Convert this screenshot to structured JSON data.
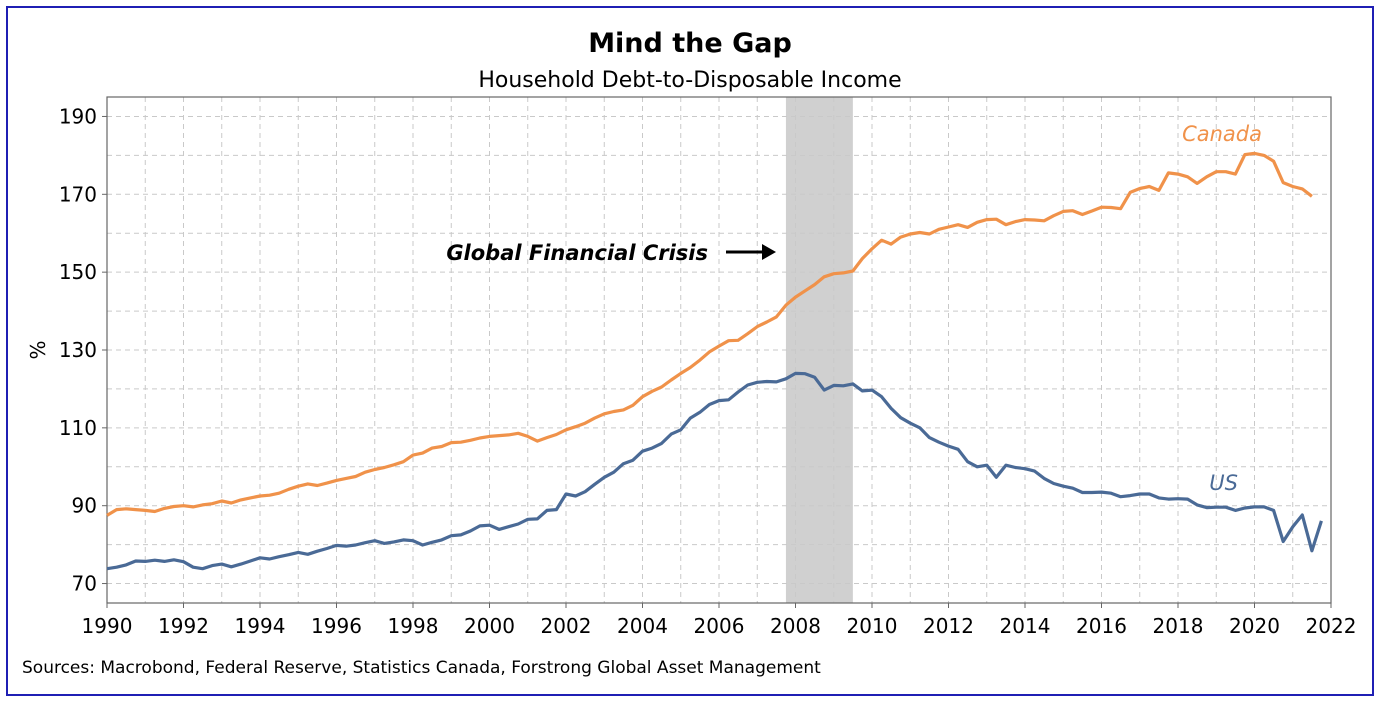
{
  "chart_data": {
    "type": "line",
    "title": "Mind the Gap",
    "subtitle": "Household Debt-to-Disposable Income",
    "ylabel": "%",
    "xlabel": "",
    "xlim": [
      1990,
      2022
    ],
    "ylim": [
      65,
      195
    ],
    "x_ticks": [
      1990,
      1992,
      1994,
      1996,
      1998,
      2000,
      2002,
      2004,
      2006,
      2008,
      2010,
      2012,
      2014,
      2016,
      2018,
      2020,
      2022
    ],
    "y_ticks": [
      70,
      90,
      110,
      130,
      150,
      170,
      190
    ],
    "grid": true,
    "shaded_region": {
      "label": "Global Financial Crisis",
      "start": 2007.75,
      "end": 2009.5,
      "color": "#d0d0d0"
    },
    "annotation": {
      "text": "Global Financial Crisis",
      "arrow": "right"
    },
    "source": "Sources: Macrobond, Federal Reserve, Statistics Canada, Forstrong Global Asset Management",
    "series": [
      {
        "name": "Canada",
        "color": "#f0924a",
        "points": [
          [
            1990.0,
            87.5
          ],
          [
            1990.25,
            89.0
          ],
          [
            1990.5,
            89.2
          ],
          [
            1990.75,
            89.0
          ],
          [
            1991.0,
            88.8
          ],
          [
            1991.25,
            88.5
          ],
          [
            1991.5,
            89.3
          ],
          [
            1991.75,
            89.8
          ],
          [
            1992.0,
            90.0
          ],
          [
            1992.25,
            89.7
          ],
          [
            1992.5,
            90.2
          ],
          [
            1992.75,
            90.5
          ],
          [
            1993.0,
            91.2
          ],
          [
            1993.25,
            90.7
          ],
          [
            1993.5,
            91.5
          ],
          [
            1993.75,
            92.0
          ],
          [
            1994.0,
            92.5
          ],
          [
            1994.25,
            92.7
          ],
          [
            1994.5,
            93.2
          ],
          [
            1994.75,
            94.2
          ],
          [
            1995.0,
            95.0
          ],
          [
            1995.25,
            95.6
          ],
          [
            1995.5,
            95.2
          ],
          [
            1995.75,
            95.8
          ],
          [
            1996.0,
            96.5
          ],
          [
            1996.25,
            97.0
          ],
          [
            1996.5,
            97.5
          ],
          [
            1996.75,
            98.6
          ],
          [
            1997.0,
            99.3
          ],
          [
            1997.25,
            99.8
          ],
          [
            1997.5,
            100.5
          ],
          [
            1997.75,
            101.3
          ],
          [
            1998.0,
            103.0
          ],
          [
            1998.25,
            103.5
          ],
          [
            1998.5,
            104.8
          ],
          [
            1998.75,
            105.2
          ],
          [
            1999.0,
            106.2
          ],
          [
            1999.25,
            106.3
          ],
          [
            1999.5,
            106.8
          ],
          [
            1999.75,
            107.4
          ],
          [
            2000.0,
            107.8
          ],
          [
            2000.25,
            108.0
          ],
          [
            2000.5,
            108.2
          ],
          [
            2000.75,
            108.6
          ],
          [
            2001.0,
            107.8
          ],
          [
            2001.25,
            106.6
          ],
          [
            2001.5,
            107.5
          ],
          [
            2001.75,
            108.3
          ],
          [
            2002.0,
            109.5
          ],
          [
            2002.25,
            110.3
          ],
          [
            2002.5,
            111.2
          ],
          [
            2002.75,
            112.5
          ],
          [
            2003.0,
            113.6
          ],
          [
            2003.25,
            114.2
          ],
          [
            2003.5,
            114.6
          ],
          [
            2003.75,
            115.8
          ],
          [
            2004.0,
            118.0
          ],
          [
            2004.25,
            119.4
          ],
          [
            2004.5,
            120.5
          ],
          [
            2004.75,
            122.3
          ],
          [
            2005.0,
            124.0
          ],
          [
            2005.25,
            125.5
          ],
          [
            2005.5,
            127.4
          ],
          [
            2005.75,
            129.5
          ],
          [
            2006.0,
            131.0
          ],
          [
            2006.25,
            132.4
          ],
          [
            2006.5,
            132.5
          ],
          [
            2006.75,
            134.2
          ],
          [
            2007.0,
            136.0
          ],
          [
            2007.25,
            137.2
          ],
          [
            2007.5,
            138.5
          ],
          [
            2007.75,
            141.5
          ],
          [
            2008.0,
            143.6
          ],
          [
            2008.25,
            145.2
          ],
          [
            2008.5,
            146.8
          ],
          [
            2008.75,
            148.8
          ],
          [
            2009.0,
            149.6
          ],
          [
            2009.25,
            149.8
          ],
          [
            2009.5,
            150.3
          ],
          [
            2009.75,
            153.5
          ],
          [
            2010.0,
            156.0
          ],
          [
            2010.25,
            158.2
          ],
          [
            2010.5,
            157.2
          ],
          [
            2010.75,
            159.0
          ],
          [
            2011.0,
            159.8
          ],
          [
            2011.25,
            160.2
          ],
          [
            2011.5,
            159.8
          ],
          [
            2011.75,
            161.0
          ],
          [
            2012.0,
            161.6
          ],
          [
            2012.25,
            162.2
          ],
          [
            2012.5,
            161.5
          ],
          [
            2012.75,
            162.8
          ],
          [
            2013.0,
            163.5
          ],
          [
            2013.25,
            163.6
          ],
          [
            2013.5,
            162.2
          ],
          [
            2013.75,
            163.0
          ],
          [
            2014.0,
            163.5
          ],
          [
            2014.25,
            163.4
          ],
          [
            2014.5,
            163.2
          ],
          [
            2014.75,
            164.5
          ],
          [
            2015.0,
            165.6
          ],
          [
            2015.25,
            165.8
          ],
          [
            2015.5,
            164.8
          ],
          [
            2015.75,
            165.7
          ],
          [
            2016.0,
            166.7
          ],
          [
            2016.25,
            166.6
          ],
          [
            2016.5,
            166.3
          ],
          [
            2016.75,
            170.5
          ],
          [
            2017.0,
            171.5
          ],
          [
            2017.25,
            172.0
          ],
          [
            2017.5,
            171.0
          ],
          [
            2017.75,
            175.5
          ],
          [
            2018.0,
            175.2
          ],
          [
            2018.25,
            174.5
          ],
          [
            2018.5,
            172.8
          ],
          [
            2018.75,
            174.5
          ],
          [
            2019.0,
            175.8
          ],
          [
            2019.25,
            175.8
          ],
          [
            2019.5,
            175.2
          ],
          [
            2019.75,
            180.2
          ],
          [
            2020.0,
            180.5
          ],
          [
            2020.25,
            180.0
          ],
          [
            2020.5,
            178.5
          ],
          [
            2020.75,
            173.0
          ],
          [
            2021.0,
            172.0
          ],
          [
            2021.25,
            171.4
          ],
          [
            2021.5,
            169.5
          ]
        ]
      },
      {
        "name": "US",
        "color": "#4a6a96",
        "points": [
          [
            1990.0,
            73.8
          ],
          [
            1990.25,
            74.2
          ],
          [
            1990.5,
            74.8
          ],
          [
            1990.75,
            75.8
          ],
          [
            1991.0,
            75.7
          ],
          [
            1991.25,
            76.0
          ],
          [
            1991.5,
            75.7
          ],
          [
            1991.75,
            76.1
          ],
          [
            1992.0,
            75.6
          ],
          [
            1992.25,
            74.2
          ],
          [
            1992.5,
            73.8
          ],
          [
            1992.75,
            74.6
          ],
          [
            1993.0,
            75.0
          ],
          [
            1993.25,
            74.3
          ],
          [
            1993.5,
            75.0
          ],
          [
            1993.75,
            75.8
          ],
          [
            1994.0,
            76.6
          ],
          [
            1994.25,
            76.3
          ],
          [
            1994.5,
            76.9
          ],
          [
            1994.75,
            77.4
          ],
          [
            1995.0,
            78.0
          ],
          [
            1995.25,
            77.5
          ],
          [
            1995.5,
            78.3
          ],
          [
            1995.75,
            79.0
          ],
          [
            1996.0,
            79.8
          ],
          [
            1996.25,
            79.6
          ],
          [
            1996.5,
            79.9
          ],
          [
            1996.75,
            80.5
          ],
          [
            1997.0,
            81.0
          ],
          [
            1997.25,
            80.3
          ],
          [
            1997.5,
            80.7
          ],
          [
            1997.75,
            81.2
          ],
          [
            1998.0,
            81.0
          ],
          [
            1998.25,
            79.9
          ],
          [
            1998.5,
            80.6
          ],
          [
            1998.75,
            81.2
          ],
          [
            1999.0,
            82.3
          ],
          [
            1999.25,
            82.5
          ],
          [
            1999.5,
            83.5
          ],
          [
            1999.75,
            84.8
          ],
          [
            2000.0,
            85.0
          ],
          [
            2000.25,
            83.9
          ],
          [
            2000.5,
            84.6
          ],
          [
            2000.75,
            85.3
          ],
          [
            2001.0,
            86.5
          ],
          [
            2001.25,
            86.6
          ],
          [
            2001.5,
            88.8
          ],
          [
            2001.75,
            89.0
          ],
          [
            2002.0,
            93.0
          ],
          [
            2002.25,
            92.5
          ],
          [
            2002.5,
            93.6
          ],
          [
            2002.75,
            95.5
          ],
          [
            2003.0,
            97.3
          ],
          [
            2003.25,
            98.6
          ],
          [
            2003.5,
            100.8
          ],
          [
            2003.75,
            101.7
          ],
          [
            2004.0,
            104.0
          ],
          [
            2004.25,
            104.8
          ],
          [
            2004.5,
            106.0
          ],
          [
            2004.75,
            108.4
          ],
          [
            2005.0,
            109.5
          ],
          [
            2005.25,
            112.5
          ],
          [
            2005.5,
            114.0
          ],
          [
            2005.75,
            116.0
          ],
          [
            2006.0,
            117.0
          ],
          [
            2006.25,
            117.2
          ],
          [
            2006.5,
            119.2
          ],
          [
            2006.75,
            121.0
          ],
          [
            2007.0,
            121.7
          ],
          [
            2007.25,
            121.9
          ],
          [
            2007.5,
            121.8
          ],
          [
            2007.75,
            122.6
          ],
          [
            2008.0,
            124.0
          ],
          [
            2008.25,
            123.9
          ],
          [
            2008.5,
            123.0
          ],
          [
            2008.75,
            119.7
          ],
          [
            2009.0,
            120.9
          ],
          [
            2009.25,
            120.8
          ],
          [
            2009.5,
            121.3
          ],
          [
            2009.75,
            119.5
          ],
          [
            2010.0,
            119.7
          ],
          [
            2010.25,
            118.0
          ],
          [
            2010.5,
            115.0
          ],
          [
            2010.75,
            112.6
          ],
          [
            2011.0,
            111.2
          ],
          [
            2011.25,
            110.0
          ],
          [
            2011.5,
            107.5
          ],
          [
            2011.75,
            106.3
          ],
          [
            2012.0,
            105.3
          ],
          [
            2012.25,
            104.5
          ],
          [
            2012.5,
            101.3
          ],
          [
            2012.75,
            100.0
          ],
          [
            2013.0,
            100.4
          ],
          [
            2013.25,
            97.3
          ],
          [
            2013.5,
            100.4
          ],
          [
            2013.75,
            99.8
          ],
          [
            2014.0,
            99.5
          ],
          [
            2014.25,
            98.9
          ],
          [
            2014.5,
            97.0
          ],
          [
            2014.75,
            95.7
          ],
          [
            2015.0,
            95.0
          ],
          [
            2015.25,
            94.5
          ],
          [
            2015.5,
            93.4
          ],
          [
            2015.75,
            93.4
          ],
          [
            2016.0,
            93.5
          ],
          [
            2016.25,
            93.2
          ],
          [
            2016.5,
            92.3
          ],
          [
            2016.75,
            92.6
          ],
          [
            2017.0,
            93.0
          ],
          [
            2017.25,
            93.0
          ],
          [
            2017.5,
            92.0
          ],
          [
            2017.75,
            91.7
          ],
          [
            2018.0,
            91.8
          ],
          [
            2018.25,
            91.7
          ],
          [
            2018.5,
            90.2
          ],
          [
            2018.75,
            89.5
          ],
          [
            2019.0,
            89.6
          ],
          [
            2019.25,
            89.6
          ],
          [
            2019.5,
            88.8
          ],
          [
            2019.75,
            89.4
          ],
          [
            2020.0,
            89.7
          ],
          [
            2020.25,
            89.7
          ],
          [
            2020.5,
            88.8
          ],
          [
            2020.75,
            80.8
          ],
          [
            2021.0,
            84.6
          ],
          [
            2021.25,
            87.6
          ],
          [
            2021.5,
            78.4
          ],
          [
            2021.75,
            86.1
          ]
        ]
      }
    ]
  }
}
